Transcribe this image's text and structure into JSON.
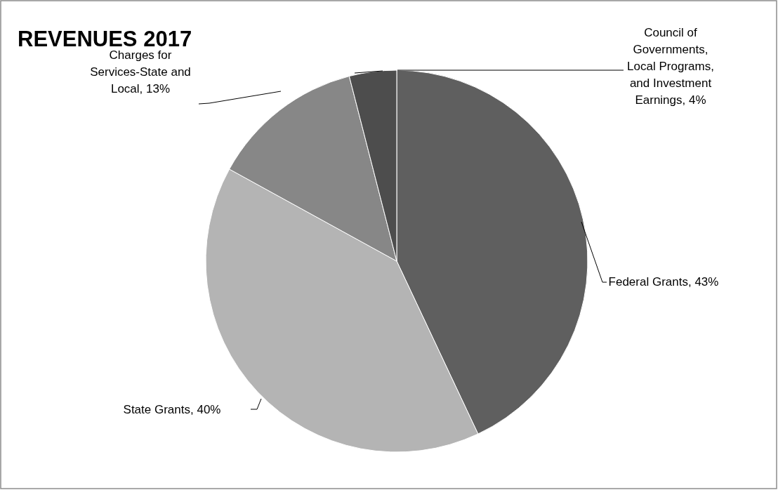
{
  "chart_data": {
    "type": "pie",
    "title": "REVENUES 2017",
    "categories": [
      "Federal Grants",
      "State Grants",
      "Charges for Services-State and Local",
      "Council of Governments, Local Programs, and Investment Earnings"
    ],
    "values": [
      43,
      40,
      13,
      4
    ],
    "value_labels": [
      "43%",
      "40%",
      "13%",
      "4%"
    ],
    "colors": [
      "#5f5f5f",
      "#b4b4b4",
      "#878787",
      "#4d4d4d"
    ]
  }
}
